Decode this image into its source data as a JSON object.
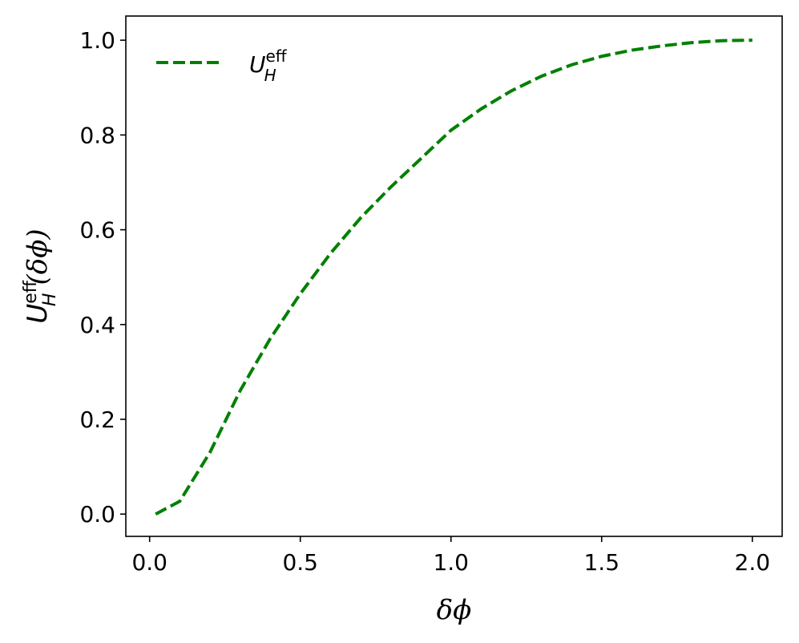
{
  "chart_data": {
    "type": "line",
    "x": [
      0.02,
      0.1,
      0.2,
      0.3,
      0.4,
      0.5,
      0.6,
      0.7,
      0.8,
      0.9,
      1.0,
      1.1,
      1.2,
      1.3,
      1.4,
      1.5,
      1.6,
      1.7,
      1.8,
      1.9,
      2.0
    ],
    "series": [
      {
        "name": "U",
        "name_sub": "H",
        "name_sup": "eff",
        "color": "#008000",
        "dashed": true,
        "values": [
          0.0,
          0.027,
          0.13,
          0.26,
          0.37,
          0.465,
          0.55,
          0.625,
          0.69,
          0.75,
          0.81,
          0.855,
          0.893,
          0.924,
          0.948,
          0.966,
          0.979,
          0.988,
          0.995,
          0.999,
          1.0
        ]
      }
    ],
    "xlabel": "δϕ",
    "ylabel": {
      "main": "U",
      "sub": "H",
      "sup": "eff",
      "arg": "(δϕ)"
    },
    "xlim": [
      -0.079,
      2.099
    ],
    "ylim": [
      -0.047,
      1.051
    ],
    "xticks": [
      {
        "value": 0,
        "label": "0.0"
      },
      0.5,
      {
        "value": 1,
        "label": "1.0"
      },
      1.5,
      {
        "value": 2,
        "label": "2.0"
      }
    ],
    "yticks": [
      {
        "value": 0,
        "label": "0.0"
      },
      0.2,
      0.4,
      0.6,
      0.8,
      {
        "value": 1,
        "label": "1.0"
      }
    ],
    "legend": "upper left",
    "grid": false
  }
}
